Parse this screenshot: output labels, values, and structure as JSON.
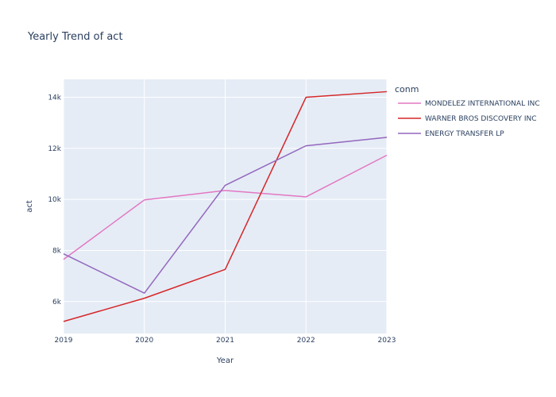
{
  "chart_data": {
    "type": "line",
    "title": "Yearly Trend of act",
    "xlabel": "Year",
    "ylabel": "act",
    "x": [
      2019,
      2020,
      2021,
      2022,
      2023
    ],
    "xlim": [
      2019,
      2023
    ],
    "ylim": [
      4750,
      14700
    ],
    "y_ticks": [
      6000,
      8000,
      10000,
      12000,
      14000
    ],
    "y_tick_labels": [
      "6k",
      "8k",
      "10k",
      "12k",
      "14k"
    ],
    "x_tick_labels": [
      "2019",
      "2020",
      "2021",
      "2022",
      "2023"
    ],
    "grid": true,
    "plot_background": "#e5ecf6",
    "legend": {
      "title": "conm",
      "placement": "right"
    },
    "series": [
      {
        "name": "MONDELEZ INTERNATIONAL INC",
        "color": "#e377c2",
        "values": [
          7650,
          9980,
          10350,
          10100,
          11730
        ]
      },
      {
        "name": "WARNER BROS DISCOVERY INC",
        "color": "#d62728",
        "values": [
          5220,
          6130,
          7260,
          14000,
          14220
        ]
      },
      {
        "name": "ENERGY TRANSFER LP",
        "color": "#9467bd",
        "values": [
          7870,
          6330,
          10550,
          12100,
          12430
        ]
      }
    ]
  }
}
